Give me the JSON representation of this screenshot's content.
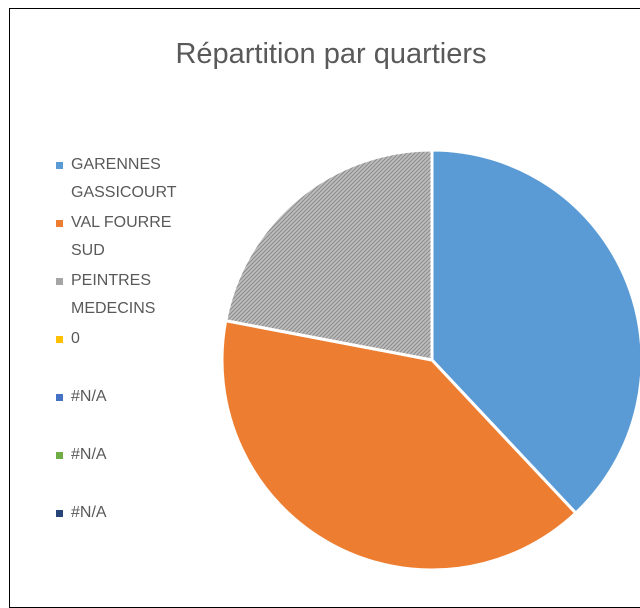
{
  "chart_data": {
    "type": "pie",
    "title": "Répartition par quartiers",
    "categories": [
      "GARENNES GASSICOURT",
      "VAL FOURRE SUD",
      "PEINTRES MEDECINS",
      "0",
      "#N/A",
      "#N/A",
      "#N/A"
    ],
    "values": [
      38,
      40,
      22,
      0,
      null,
      null,
      null
    ],
    "colors": [
      "#5b9bd5",
      "#ed7d31",
      "#a5a5a5",
      "#ffc000",
      "#4472c4",
      "#70ad47",
      "#264478"
    ],
    "legend": "left"
  }
}
